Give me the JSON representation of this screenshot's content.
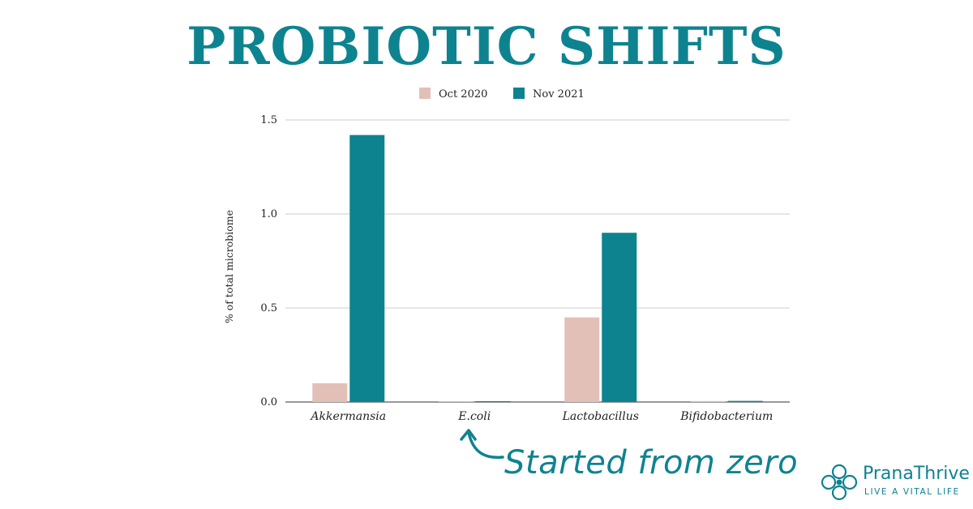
{
  "title": "PROBIOTIC SHIFTS",
  "annotation": "Started from zero",
  "brand": {
    "name": "PranaThrive",
    "tagline": "LIVE A VITAL LIFE"
  },
  "colors": {
    "accent": "#0e8390",
    "oct_2020": "#e2c0b8",
    "nov_2021": "#0e8390",
    "grid": "#cccccc"
  },
  "icons": {
    "arrow": "curved-arrow-icon",
    "logo": "pranathrive-logo-icon"
  },
  "chart_data": {
    "type": "bar",
    "categories": [
      "Akkermansia",
      "E.coli",
      "Lactobacillus",
      "Bifidobacterium"
    ],
    "series": [
      {
        "name": "Oct 2020",
        "values": [
          0.1,
          0.0,
          0.45,
          0.005
        ]
      },
      {
        "name": "Nov 2021",
        "values": [
          1.42,
          0.003,
          0.9,
          0.006
        ]
      }
    ],
    "ylabel": "% of total microbiome",
    "xlabel": "",
    "ylim": [
      0,
      1.5
    ],
    "yticks": [
      "0.0",
      "0.5",
      "1.0",
      "1.5"
    ],
    "grid": true,
    "legend_position": "top-center"
  }
}
